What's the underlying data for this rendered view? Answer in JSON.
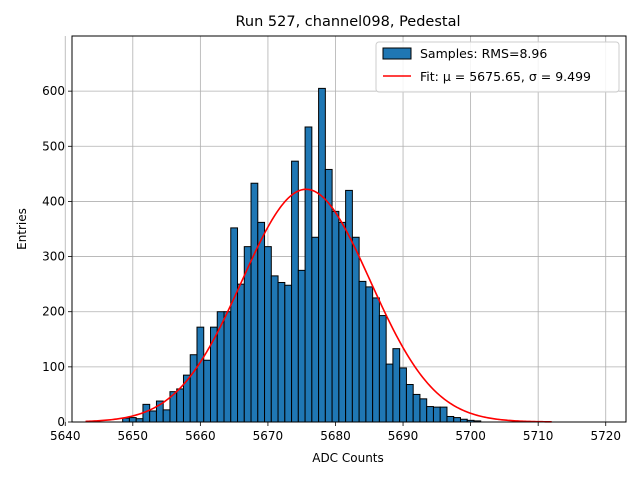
{
  "chart_data": {
    "type": "bar",
    "title": "Run 527, channel098, Pedestal",
    "xlabel": "ADC Counts",
    "ylabel": "Entries",
    "xlim": [
      5641,
      5723
    ],
    "ylim": [
      0,
      700
    ],
    "xticks": [
      5640,
      5650,
      5660,
      5670,
      5680,
      5690,
      5700,
      5710,
      5720
    ],
    "yticks": [
      0,
      100,
      200,
      300,
      400,
      500,
      600
    ],
    "grid": true,
    "legend_position": "top-right",
    "bar_color": "#1f77b4",
    "fit_color": "#ff0000",
    "series": [
      {
        "name": "Samples: RMS=8.96",
        "type": "histogram",
        "bin_width": 1,
        "x": [
          5649,
          5650,
          5651,
          5652,
          5653,
          5654,
          5655,
          5656,
          5657,
          5658,
          5659,
          5660,
          5661,
          5662,
          5663,
          5664,
          5665,
          5666,
          5667,
          5668,
          5669,
          5670,
          5671,
          5672,
          5673,
          5674,
          5675,
          5676,
          5677,
          5678,
          5679,
          5680,
          5681,
          5682,
          5683,
          5684,
          5685,
          5686,
          5687,
          5688,
          5689,
          5690,
          5691,
          5692,
          5693,
          5694,
          5695,
          5696,
          5697,
          5698,
          5699,
          5700,
          5701
        ],
        "values": [
          7,
          8,
          6,
          32,
          20,
          38,
          22,
          55,
          60,
          85,
          122,
          172,
          112,
          172,
          200,
          200,
          352,
          250,
          318,
          433,
          362,
          318,
          265,
          253,
          248,
          473,
          275,
          535,
          335,
          605,
          458,
          382,
          362,
          420,
          335,
          255,
          245,
          225,
          193,
          105,
          133,
          98,
          68,
          50,
          42,
          28,
          27,
          27,
          10,
          8,
          5,
          3,
          2
        ]
      },
      {
        "name": "Fit",
        "legend_label": "Fit: μ = 5675.65, σ = 9.499",
        "type": "gaussian",
        "mu": 5675.65,
        "sigma": 9.499,
        "amplitude": 422,
        "x_range": [
          5643,
          5712
        ]
      }
    ]
  }
}
